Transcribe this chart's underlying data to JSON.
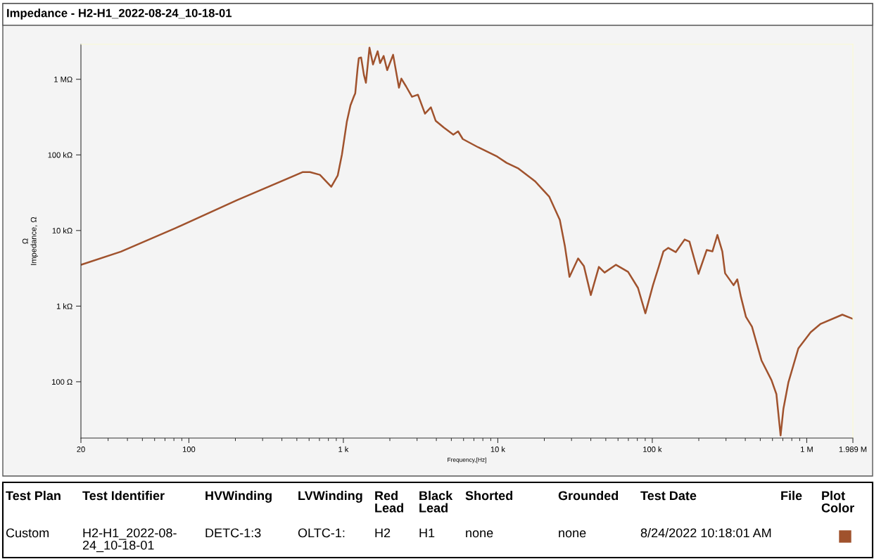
{
  "chart_data": {
    "type": "line",
    "title": "Impedance - H2-H1_2022-08-24_10-18-01",
    "xlabel": "Frequency,[Hz]",
    "ylabel": "Ω\nImpedance, Ω",
    "log": "xy",
    "grid": false,
    "marker": "none",
    "line_style": "solid",
    "xlim": [
      20,
      1989000
    ],
    "xticks": [
      20,
      100,
      {
        "value": 1000,
        "label": "1 k"
      },
      {
        "value": 10000,
        "label": "10 k"
      },
      {
        "value": 100000,
        "label": "100 k"
      },
      {
        "value": 1000000,
        "label": "1 M"
      },
      {
        "value": 1989000,
        "label": "1.989 M"
      }
    ],
    "ylim": [
      18,
      2900000
    ],
    "yticks": [
      {
        "value": 100,
        "label": "100 Ω"
      },
      {
        "value": 1000,
        "label": "1 kΩ"
      },
      {
        "value": 10000,
        "label": "10 kΩ"
      },
      {
        "value": 100000,
        "label": "100 kΩ"
      },
      {
        "value": 1000000,
        "label": "1 MΩ"
      }
    ],
    "series": [
      {
        "color": "#a0522d",
        "x": [
          20,
          36.3,
          81.5,
          205,
          547,
          608,
          705,
          835,
          919,
          979,
          1054,
          1112,
          1172,
          1194,
          1236,
          1259,
          1303,
          1359,
          1400,
          1476,
          1556,
          1667,
          1729,
          1823,
          1922,
          2099,
          2291,
          2374,
          2545,
          2782,
          3038,
          3376,
          3687,
          3957,
          4477,
          5152,
          5530,
          5932,
          7464,
          9910,
          11400,
          13600,
          17400,
          21500,
          25200,
          27200,
          29100,
          33100,
          36100,
          40000,
          45100,
          49100,
          58200,
          69700,
          80800,
          90200,
          101000,
          110000,
          118000,
          127000,
          142000,
          162000,
          174000,
          199000,
          225000,
          245000,
          264000,
          284000,
          296000,
          336000,
          355000,
          375000,
          404000,
          442000,
          509000,
          591000,
          636000,
          677000,
          706000,
          761000,
          882000,
          1060000,
          1230000,
          1700000,
          1989000
        ],
        "values": [
          3520,
          5250,
          10700,
          25200,
          59300,
          59300,
          54500,
          37900,
          53300,
          101000,
          277000,
          453000,
          598000,
          652000,
          1380000,
          1900000,
          1940000,
          1140000,
          899000,
          2620000,
          1570000,
          2350000,
          1640000,
          2030000,
          1320000,
          2110000,
          773000,
          1020000,
          807000,
          586000,
          625000,
          351000,
          425000,
          283000,
          229000,
          185000,
          205000,
          162000,
          126000,
          95000,
          78400,
          66000,
          44900,
          28100,
          13800,
          6140,
          2440,
          4270,
          3370,
          1400,
          3300,
          2780,
          3520,
          2840,
          1740,
          804,
          1890,
          3300,
          5290,
          5890,
          5180,
          7600,
          7130,
          2670,
          5520,
          5290,
          8740,
          5290,
          2720,
          1890,
          2260,
          1320,
          722,
          535,
          192,
          105,
          68.6,
          19.5,
          43.8,
          98.6,
          276,
          451,
          583,
          771,
          678
        ]
      }
    ],
    "annotations": [
      "Test Plan",
      "Test Identifier",
      "HVWinding",
      "LVWinding",
      "Red Lead",
      "Black Lead",
      "Shorted",
      "Grounded",
      "Test Date",
      "File",
      "Plot Color",
      "Custom",
      "H2-H1_2022-08-24_10-18-01",
      "DETC-1:3",
      "OLTC-1:",
      "H2",
      "H1",
      "none",
      "none",
      "8/24/2022 10:18:01 AM"
    ]
  }
}
